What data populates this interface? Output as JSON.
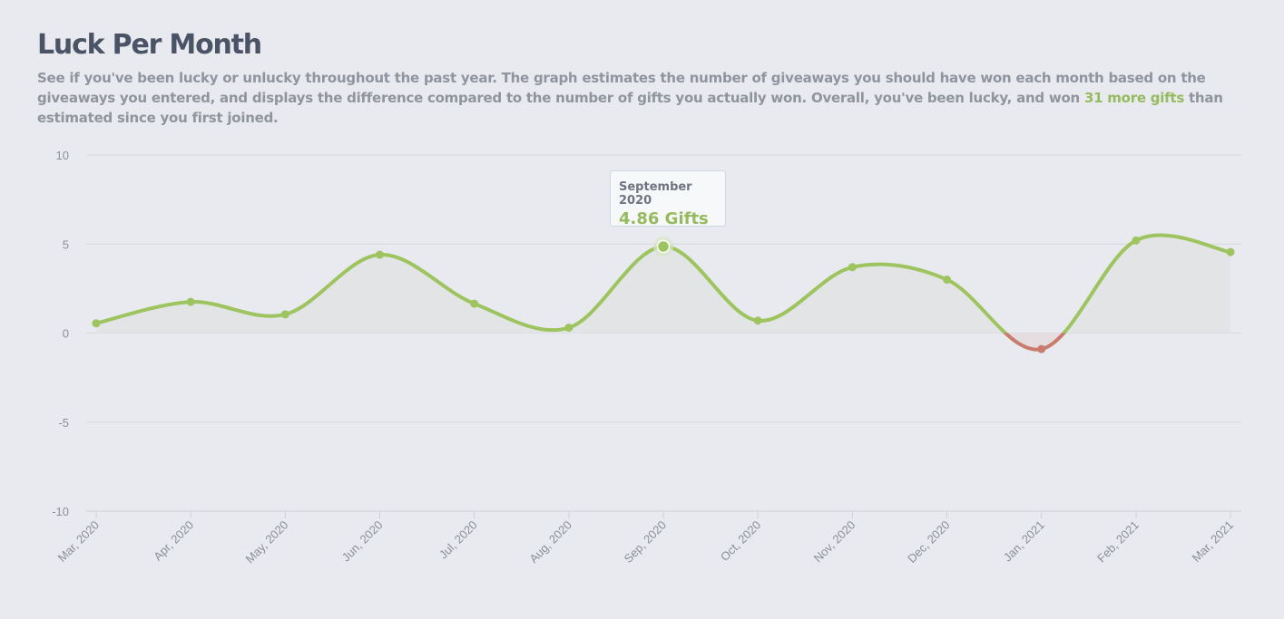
{
  "header": {
    "title": "Luck Per Month",
    "desc_before": "See if you've been lucky or unlucky throughout the past year. The graph estimates the number of giveaways you should have won each month based on the giveaways you entered, and displays the difference compared to the number of gifts you actually won. Overall, you've been lucky, and won ",
    "desc_highlight": "31 more gifts",
    "desc_after": " than estimated since you first joined."
  },
  "tooltip": {
    "month": "September 2020",
    "value": "4.86 Gifts"
  },
  "chart_data": {
    "type": "area",
    "categories": [
      "Mar, 2020",
      "Apr, 2020",
      "May, 2020",
      "Jun, 2020",
      "Jul, 2020",
      "Aug, 2020",
      "Sep, 2020",
      "Oct, 2020",
      "Nov, 2020",
      "Dec, 2020",
      "Jan, 2021",
      "Feb, 2021",
      "Mar, 2021"
    ],
    "values": [
      0.55,
      1.75,
      1.05,
      4.4,
      1.65,
      0.3,
      4.86,
      0.7,
      3.7,
      3.0,
      -0.9,
      5.2,
      4.55
    ],
    "yticks": [
      10,
      5,
      0,
      -5,
      -10
    ],
    "ylim": [
      -10,
      10
    ],
    "grid": true,
    "highlighted_index": 6,
    "colors": {
      "positive": "#9dc45f",
      "negative": "#c97c6b",
      "fill_positive": "#e3e4e6",
      "fill_negative": "#e6dde0",
      "grid": "#d6d8de"
    }
  }
}
